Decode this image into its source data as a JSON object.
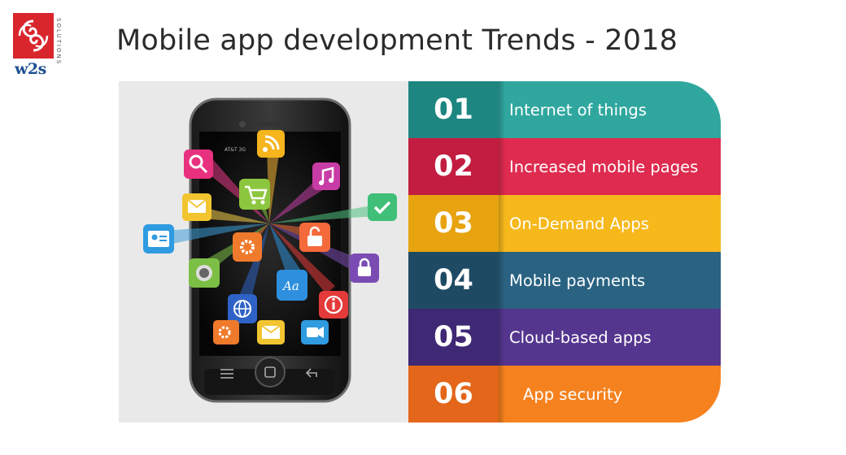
{
  "logo": {
    "brand": "w2s",
    "tagline": "SOLUTIONS"
  },
  "title": "Mobile app development Trends - 2018",
  "phone": {
    "carrier": "AT&T 3G",
    "icons": [
      "search-icon",
      "rss-icon",
      "music-icon",
      "mail-icon",
      "cart-icon",
      "check-icon",
      "contact-card-icon",
      "settings-icon",
      "unlock-icon",
      "lock-icon",
      "camera-icon",
      "font-icon",
      "globe-icon",
      "info-icon",
      "gears-icon",
      "envelope-icon",
      "video-icon"
    ]
  },
  "trends": [
    {
      "number": "01",
      "label": "Internet of things",
      "num_color": "#1e8680",
      "label_color": "#2fa79f"
    },
    {
      "number": "02",
      "label": "Increased mobile pages",
      "num_color": "#c21d41",
      "label_color": "#de2b4f"
    },
    {
      "number": "03",
      "label": "On-Demand Apps",
      "num_color": "#e7a310",
      "label_color": "#f6b81b"
    },
    {
      "number": "04",
      "label": "Mobile payments",
      "num_color": "#1f4a63",
      "label_color": "#2a6382"
    },
    {
      "number": "05",
      "label": "Cloud-based apps",
      "num_color": "#3f2874",
      "label_color": "#55368f"
    },
    {
      "number": "06",
      "label": "App security",
      "num_color": "#e4661a",
      "label_color": "#f5821f"
    }
  ]
}
